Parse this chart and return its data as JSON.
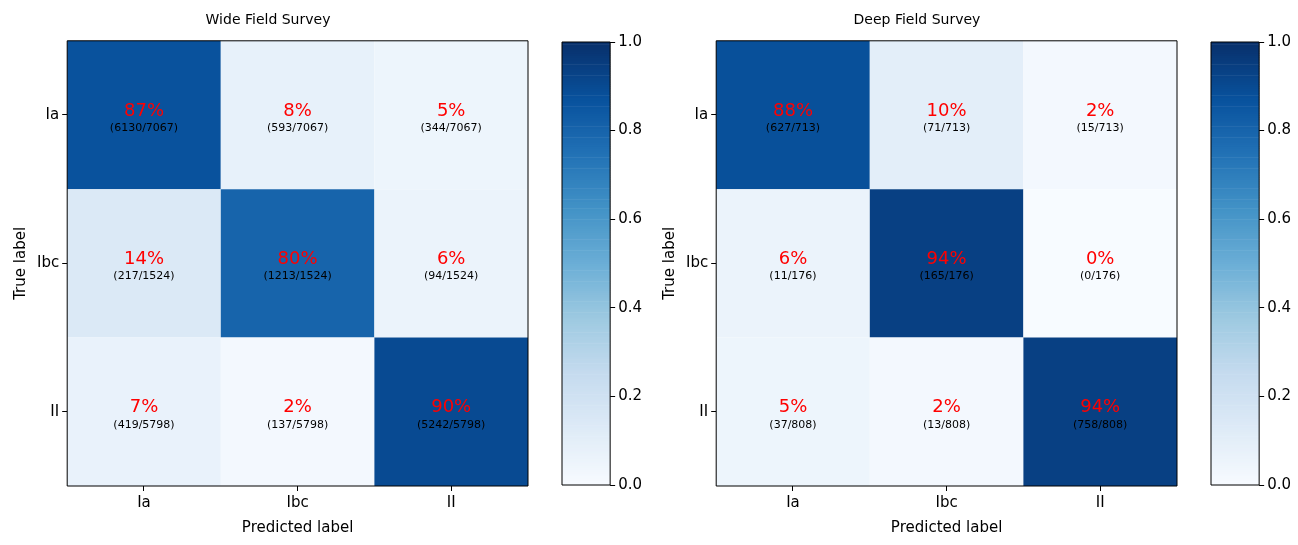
{
  "chart_data": [
    {
      "type": "heatmap",
      "title": "Wide Field Survey",
      "xlabel": "Predicted label",
      "ylabel": "True label",
      "categories": [
        "Ia",
        "Ibc",
        "II"
      ],
      "y_categories": [
        "Ia",
        "Ibc",
        "II"
      ],
      "cells": [
        [
          0.87,
          0.08,
          0.05
        ],
        [
          0.14,
          0.8,
          0.06
        ],
        [
          0.07,
          0.02,
          0.9
        ]
      ],
      "cell_labels": [
        [
          "87%\n(6130/7067)",
          "8%\n(593/7067)",
          "5%\n(344/7067)"
        ],
        [
          "14%\n(217/1524)",
          "80%\n(1213/1524)",
          "6%\n(94/1524)"
        ],
        [
          "7%\n(419/5798)",
          "2%\n(137/5798)",
          "90%\n(5242/5798)"
        ]
      ],
      "clim": [
        0,
        1
      ],
      "cticks": [
        {
          "value": 0,
          "label": "0.0"
        },
        {
          "value": 0.2,
          "label": "0.2"
        },
        {
          "value": 0.4,
          "label": "0.4"
        },
        {
          "value": 0.6,
          "label": "0.6"
        },
        {
          "value": 0.8,
          "label": "0.8"
        },
        {
          "value": 1,
          "label": "1.0"
        }
      ]
    },
    {
      "type": "heatmap",
      "title": "Deep Field Survey",
      "xlabel": "Predicted label",
      "ylabel": "True label",
      "categories": [
        "Ia",
        "Ibc",
        "II"
      ],
      "y_categories": [
        "Ia",
        "Ibc",
        "II"
      ],
      "cells": [
        [
          0.88,
          0.1,
          0.02
        ],
        [
          0.06,
          0.94,
          0.0
        ],
        [
          0.05,
          0.02,
          0.94
        ]
      ],
      "cell_labels": [
        [
          "88%\n(627/713)",
          "10%\n(71/713)",
          "2%\n(15/713)"
        ],
        [
          "6%\n(11/176)",
          "94%\n(165/176)",
          "0%\n(0/176)"
        ],
        [
          "5%\n(37/808)",
          "2%\n(13/808)",
          "94%\n(758/808)"
        ]
      ],
      "clim": [
        0,
        1
      ],
      "cticks": [
        {
          "value": 0,
          "label": "0.0"
        },
        {
          "value": 0.2,
          "label": "0.2"
        },
        {
          "value": 0.4,
          "label": "0.4"
        },
        {
          "value": 0.6,
          "label": "0.6"
        },
        {
          "value": 0.8,
          "label": "0.8"
        },
        {
          "value": 1,
          "label": "1.0"
        }
      ]
    }
  ]
}
